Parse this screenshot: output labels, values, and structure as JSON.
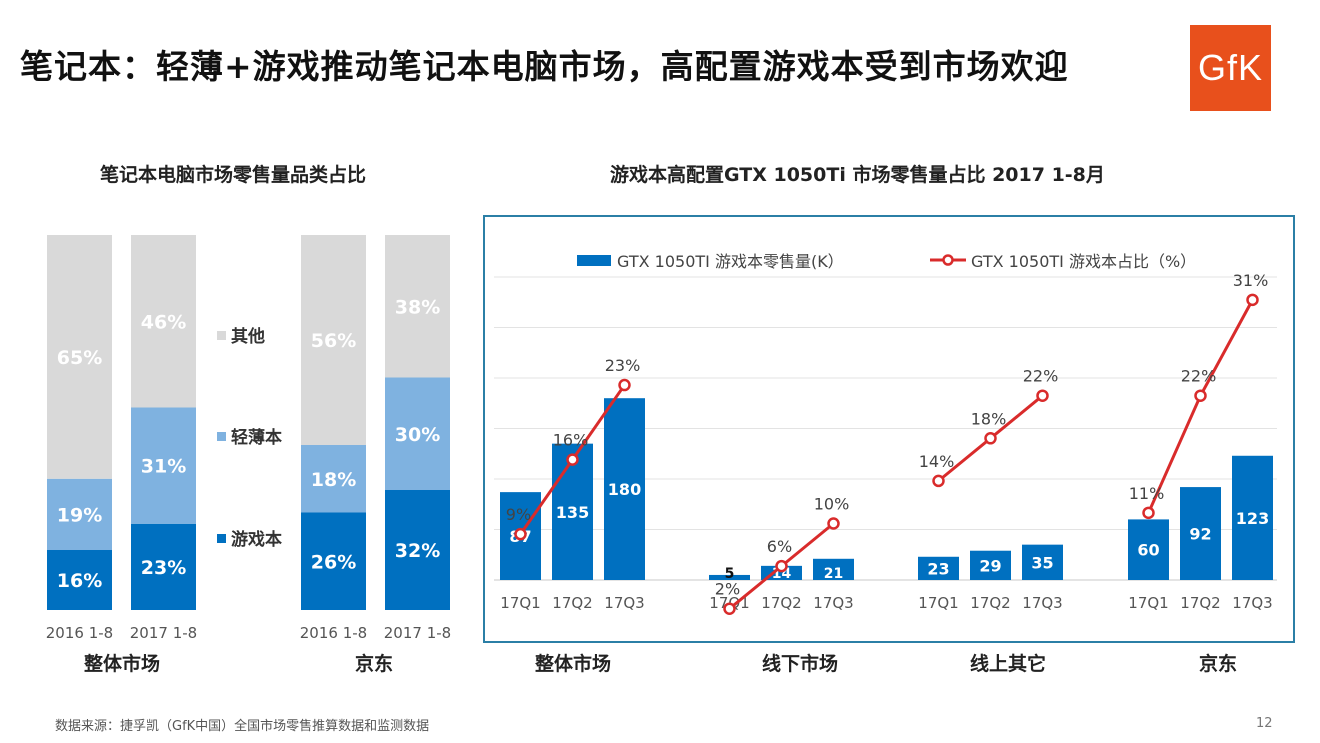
{
  "header": {
    "title": "笔记本：轻薄+游戏推动笔记本电脑市场，高配置游戏本受到市场欢迎",
    "logo_text": "GfK"
  },
  "footer": {
    "source": "数据来源：捷孚凯（GfK中国）全国市场零售推算数据和监测数据",
    "page_number": "12"
  },
  "colors": {
    "game": "#0070c0",
    "thin": "#7fb2e0",
    "other": "#d9d9d9",
    "line": "#d92b2b",
    "frame": "#2b7fa6",
    "logo": "#e8501c"
  },
  "chart_data": [
    {
      "type": "bar",
      "stacked": true,
      "percent": true,
      "title": "笔记本电脑市场零售量品类占比",
      "groups": [
        "整体市场",
        "京东"
      ],
      "categories": [
        "2016 1-8",
        "2017 1-8",
        "2016 1-8",
        "2017 1-8"
      ],
      "category_group": [
        0,
        0,
        1,
        1
      ],
      "series": [
        {
          "name": "游戏本",
          "color": "#0070c0",
          "values": [
            16,
            23,
            26,
            32
          ],
          "labels": [
            "16%",
            "23%",
            "26%",
            "32%"
          ]
        },
        {
          "name": "轻薄本",
          "color": "#7fb2e0",
          "values": [
            19,
            31,
            18,
            30
          ],
          "labels": [
            "19%",
            "31%",
            "18%",
            "30%"
          ]
        },
        {
          "name": "其他",
          "color": "#d9d9d9",
          "values": [
            65,
            46,
            56,
            38
          ],
          "labels": [
            "65%",
            "46%",
            "56%",
            "38%"
          ]
        }
      ],
      "legend_order": [
        "其他",
        "轻薄本",
        "游戏本"
      ],
      "legend_position": "between groups"
    },
    {
      "type": "bar+line",
      "title": "游戏本高配置GTX 1050Ti 市场零售量占比 2017 1-8月",
      "groups": [
        "整体市场",
        "线下市场",
        "线上其它",
        "京东"
      ],
      "categories": [
        "17Q1",
        "17Q2",
        "17Q3"
      ],
      "legend": [
        "GTX 1050TI 游戏本零售量(K）",
        "GTX 1050TI 游戏本占比（%）"
      ],
      "legend_position": "top",
      "grid": true,
      "bar_series": {
        "name": "GTX 1050TI 游戏本零售量(K）",
        "color": "#0070c0",
        "values": [
          [
            87,
            135,
            180
          ],
          [
            5,
            14,
            21
          ],
          [
            23,
            29,
            35
          ],
          [
            60,
            92,
            123
          ]
        ],
        "ylim": [
          0,
          300
        ]
      },
      "line_series": {
        "name": "GTX 1050TI 游戏本占比（%）",
        "color": "#d92b2b",
        "values": [
          [
            9,
            16,
            23
          ],
          [
            2,
            6,
            10
          ],
          [
            14,
            18,
            22
          ],
          [
            11,
            22,
            31
          ]
        ],
        "labels": [
          [
            "9%",
            "16%",
            "23%"
          ],
          [
            "2%",
            "6%",
            "10%"
          ],
          [
            "14%",
            "18%",
            "22%"
          ],
          [
            "11%",
            "22%",
            "31%"
          ]
        ]
      }
    }
  ]
}
